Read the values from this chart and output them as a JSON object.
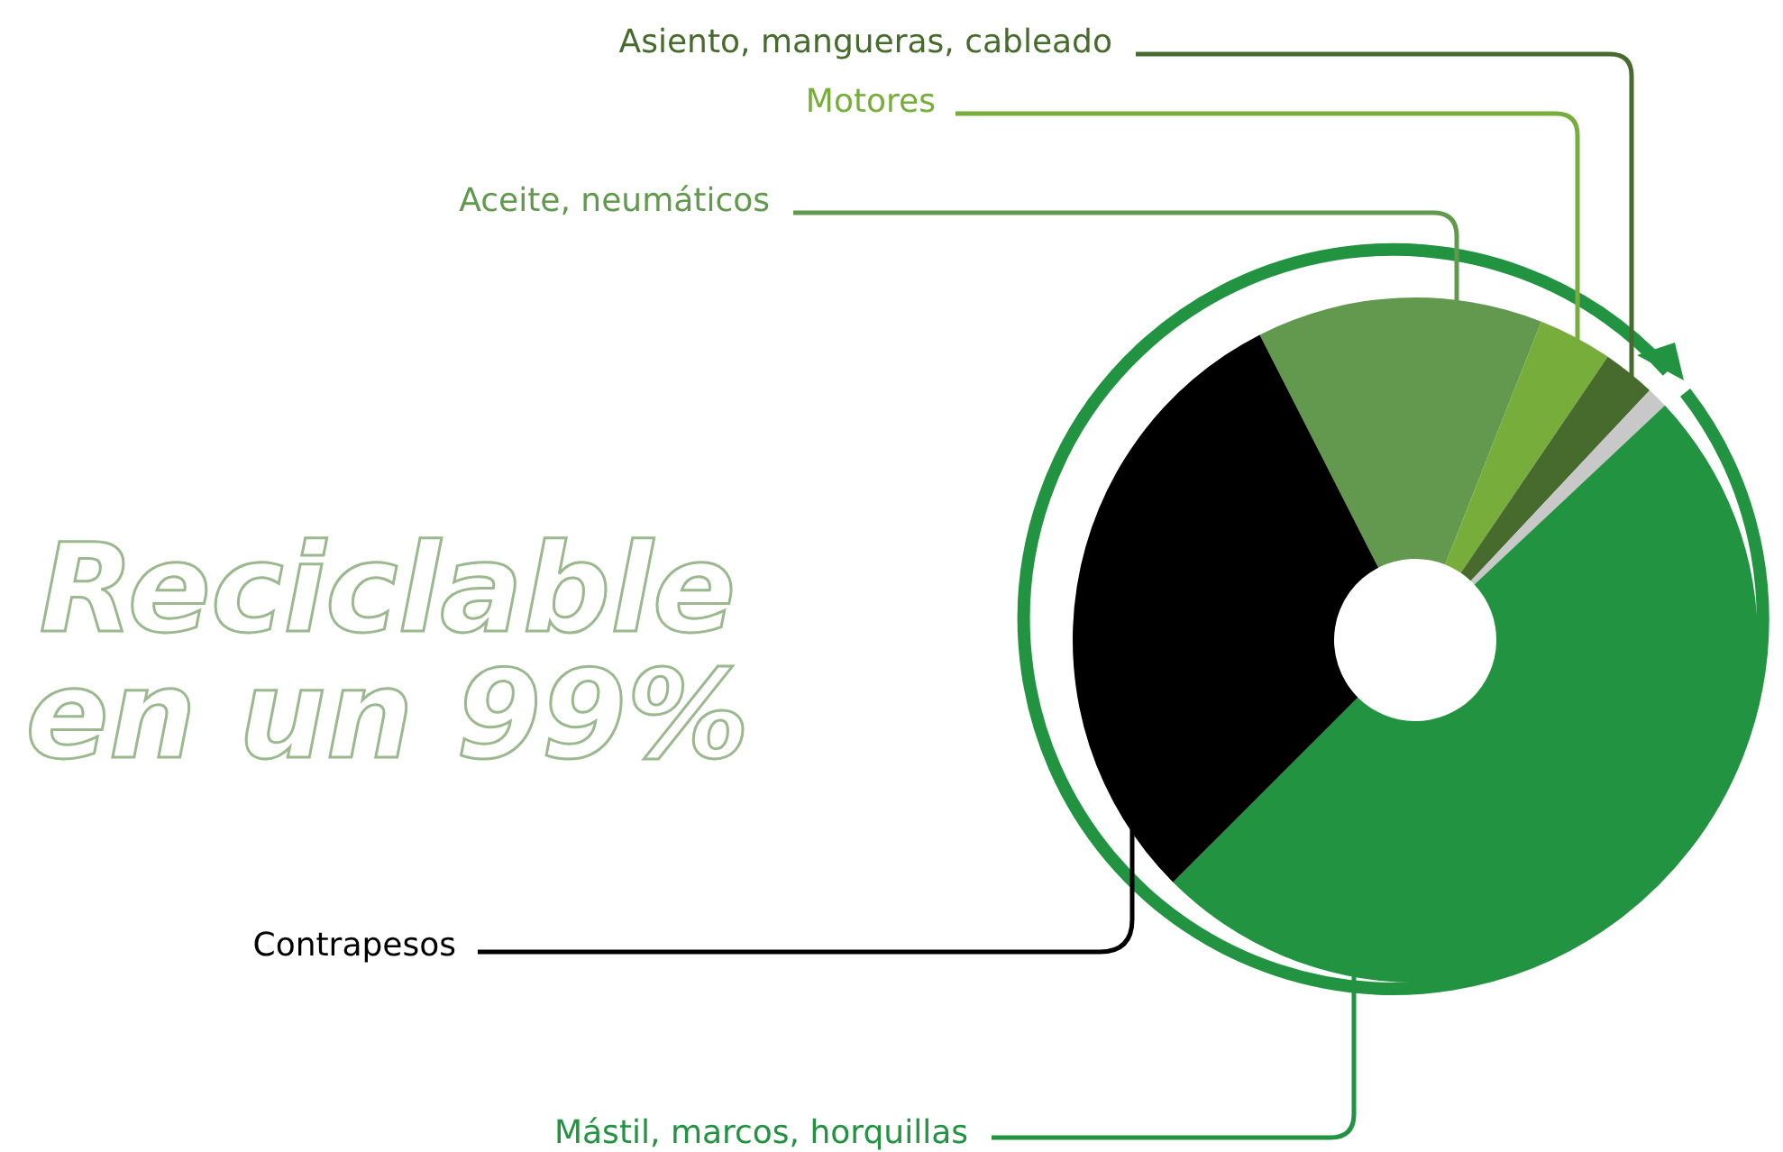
{
  "chart_data": {
    "type": "donut",
    "title": "Reciclable en un 99%",
    "categories": [
      "Aceite, neumáticos",
      "Motores",
      "Asiento, mangueras, cableado",
      null,
      "Mástil, marcos, horquillas",
      "Contrapesos"
    ],
    "values": [
      13.5,
      3.5,
      2.5,
      1,
      49.5,
      30
    ],
    "colors": [
      "#62994e",
      "#76ad3b",
      "#466b2c",
      "#c8c8c8",
      "#229441",
      "#000000"
    ]
  }
}
